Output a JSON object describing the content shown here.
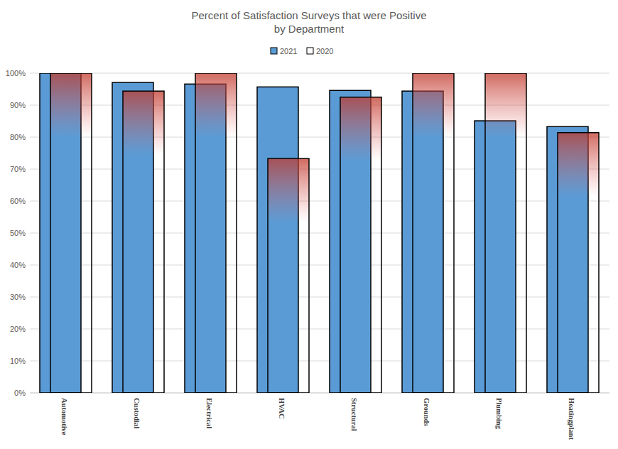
{
  "chart_data": {
    "type": "bar",
    "title": "Percent of Satisfaction Surveys that were Positive",
    "subtitle": "by Department",
    "categories": [
      "Automotive",
      "Custodial",
      "Electrical",
      "HVAC",
      "Structural",
      "Grounds",
      "Plumbing",
      "Heatingplant"
    ],
    "series": [
      {
        "name": "2021",
        "color": "#5b9bd5",
        "values": [
          100,
          97.1,
          96.6,
          95.7,
          94.6,
          94.4,
          85.1,
          83.3
        ]
      },
      {
        "name": "2020",
        "color": "#ffffff",
        "values": [
          100,
          94.4,
          100,
          73.3,
          92.5,
          100,
          100,
          81.4
        ]
      }
    ],
    "ylim": [
      0,
      100
    ],
    "yticks": [
      {
        "value": 0,
        "label": "0%"
      },
      {
        "value": 10,
        "label": "10%"
      },
      {
        "value": 20,
        "label": "20%"
      },
      {
        "value": 30,
        "label": "30%"
      },
      {
        "value": 40,
        "label": "40%"
      },
      {
        "value": 50,
        "label": "50%"
      },
      {
        "value": 60,
        "label": "60%"
      },
      {
        "value": 70,
        "label": "70%"
      },
      {
        "value": 80,
        "label": "80%"
      },
      {
        "value": 90,
        "label": "90%"
      },
      {
        "value": 100,
        "label": "100%"
      }
    ],
    "grid": true,
    "legend": "top"
  }
}
